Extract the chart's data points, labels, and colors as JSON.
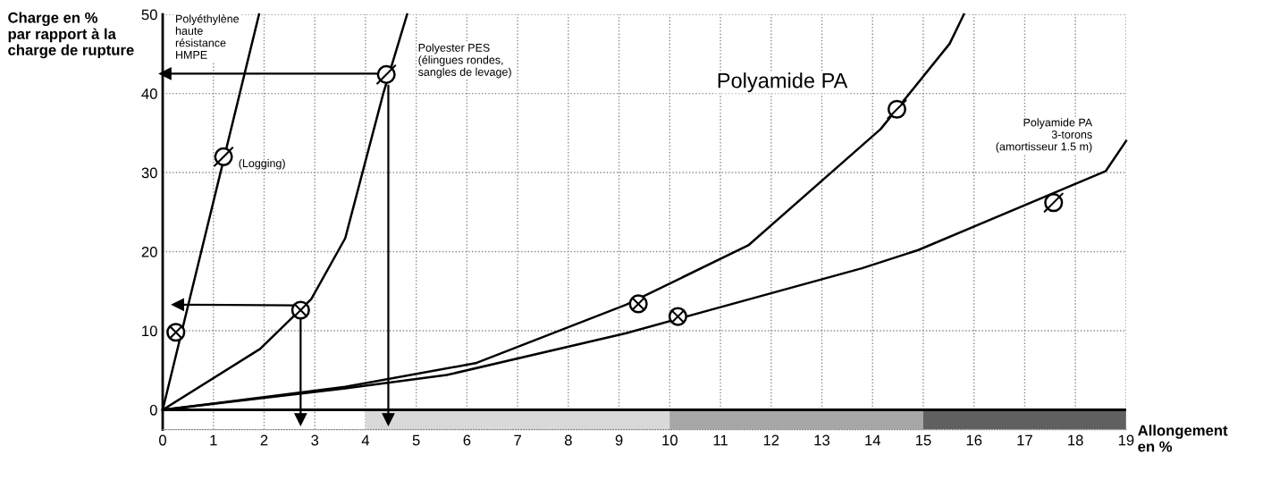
{
  "chart_data": {
    "type": "line",
    "xlabel": "Allongement\nen %",
    "ylabel": "Charge en %\npar rapport à la\ncharge de rupture",
    "xlim": [
      0,
      19
    ],
    "xticks": [
      0,
      1,
      2,
      3,
      4,
      5,
      6,
      7,
      8,
      9,
      10,
      11,
      12,
      13,
      14,
      15,
      16,
      17,
      18,
      19
    ],
    "ylim": [
      -2.5,
      50
    ],
    "yticks": [
      0,
      10,
      20,
      30,
      40,
      50
    ],
    "grid": true,
    "line_style": "solid",
    "series": [
      {
        "name": "Polyéthylène\nhaute\nrésistance\nHMPE",
        "color": "#000000",
        "x": [
          0,
          1.9
        ],
        "values": [
          0,
          50
        ]
      },
      {
        "name": "Polyester PES\n(élingues rondes,\nsangles de levage)",
        "color": "#000000",
        "x": [
          0,
          1.92,
          2.93,
          3.6,
          4.35,
          4.82
        ],
        "values": [
          0,
          7.7,
          14,
          21.7,
          40,
          50
        ]
      },
      {
        "name": "Polyamide PA",
        "color": "#000000",
        "x": [
          0,
          3.6,
          6.17,
          9.14,
          11.55,
          14.16,
          15.52,
          15.8
        ],
        "values": [
          0,
          2.9,
          5.9,
          13.3,
          20.8,
          35.5,
          46.3,
          50
        ]
      },
      {
        "name": "Polyamide PA\n3-torons\n(amortisseur 1.5 m)",
        "color": "#000000",
        "x": [
          0,
          3.6,
          5.6,
          9.14,
          13.79,
          14.9,
          18.6,
          19
        ],
        "values": [
          0,
          2.7,
          4.4,
          9.7,
          17.9,
          20.2,
          30.2,
          34
        ]
      },
      {
        "type": "scatter",
        "marker": "cross",
        "color": "#000000",
        "x": [
          0.26,
          2.72,
          9.38,
          10.16
        ],
        "values": [
          9.8,
          12.6,
          13.4,
          11.8
        ]
      },
      {
        "type": "scatter",
        "marker": "circle",
        "color": "#000000",
        "x": [
          1.2,
          4.41,
          14.48,
          17.57
        ],
        "values": [
          32,
          42.4,
          38,
          26.2
        ]
      },
      {
        "marker": "triangle",
        "color": "#000000",
        "x": [
          4.35,
          0.05
        ],
        "values": [
          42.5,
          42.5
        ]
      },
      {
        "marker": "triangle",
        "color": "#000000",
        "x": [
          4.45,
          4.45
        ],
        "values": [
          41,
          -1.2
        ]
      },
      {
        "marker": "triangle",
        "color": "#000000",
        "x": [
          2.6,
          0.3
        ],
        "values": [
          13.2,
          13.3
        ]
      },
      {
        "marker": "triangle",
        "color": "#000000",
        "x": [
          2.72,
          2.72
        ],
        "values": [
          12,
          -1.2
        ]
      }
    ],
    "ref_lines": [
      {
        "axis": "y",
        "value": 0,
        "color": "#000000"
      }
    ],
    "bands": [
      {
        "axis": "x",
        "from": 4,
        "to": 10,
        "color": "#d9d9d9"
      },
      {
        "axis": "x",
        "from": 10,
        "to": 15,
        "color": "#a6a6a6"
      },
      {
        "axis": "x",
        "from": 15,
        "to": 19,
        "color": "#606060"
      }
    ],
    "annotations": [
      {
        "text": "(Logging)",
        "x": 1.2,
        "y": 32
      }
    ]
  }
}
